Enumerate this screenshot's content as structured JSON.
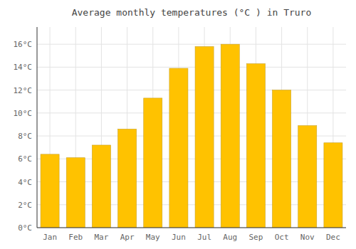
{
  "chart_data": {
    "type": "bar",
    "title": "Average monthly temperatures (°C ) in Truro",
    "categories": [
      "Jan",
      "Feb",
      "Mar",
      "Apr",
      "May",
      "Jun",
      "Jul",
      "Aug",
      "Sep",
      "Oct",
      "Nov",
      "Dec"
    ],
    "values": [
      6.4,
      6.1,
      7.2,
      8.6,
      11.3,
      13.9,
      15.8,
      16.0,
      14.3,
      12.0,
      8.9,
      7.4
    ],
    "color": "#FFC200",
    "ylim": [
      0,
      17.5
    ],
    "yticks": [
      {
        "value": 0,
        "label": "0°C"
      },
      {
        "value": 2,
        "label": "2°C"
      },
      {
        "value": 4,
        "label": "4°C"
      },
      {
        "value": 6,
        "label": "6°C"
      },
      {
        "value": 8,
        "label": "8°C"
      },
      {
        "value": 10,
        "label": "10°C"
      },
      {
        "value": 12,
        "label": "12°C"
      },
      {
        "value": 14,
        "label": "14°C"
      },
      {
        "value": 16,
        "label": "16°C"
      }
    ],
    "grid": true
  }
}
